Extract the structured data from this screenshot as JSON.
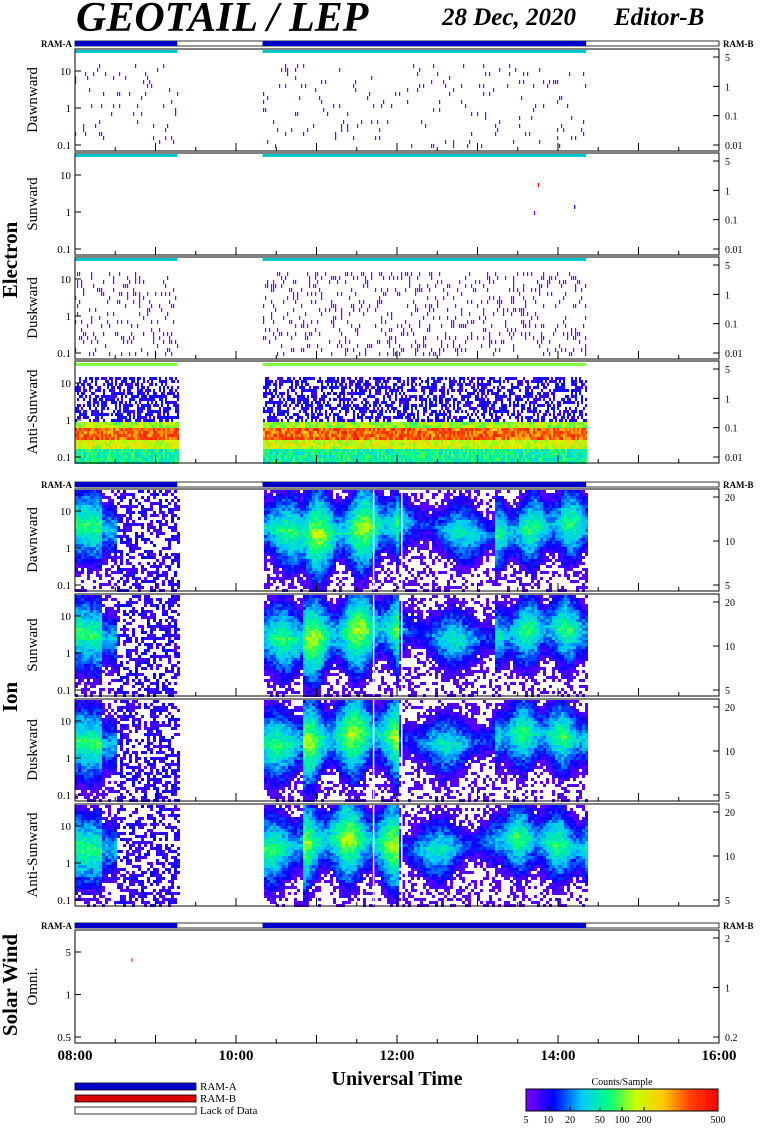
{
  "header": {
    "title": "GEOTAIL / LEP",
    "date": "28 Dec, 2020",
    "editor": "Editor-B"
  },
  "chart_data": {
    "type": "heatmap",
    "xlabel": "Universal Time",
    "x_ticks": [
      "08:00",
      "10:00",
      "12:00",
      "14:00",
      "16:00"
    ],
    "xlim_hours": [
      8,
      16
    ],
    "ram_label_left": "RAM-A",
    "ram_label_right": "RAM-B",
    "data_intervals_hours": [
      [
        8.0,
        9.27
      ],
      [
        10.33,
        14.35
      ]
    ],
    "groups": [
      {
        "name": "Electron",
        "panels": [
          {
            "label": "Dawnward",
            "kind": "e_sparse",
            "left_ticks": [
              "10",
              "1",
              "0.1"
            ],
            "right_ticks": [
              "5",
              "1",
              "0.1",
              "0.01"
            ]
          },
          {
            "label": "Sunward",
            "kind": "e_empty",
            "left_ticks": [
              "10",
              "1",
              "0.1"
            ],
            "right_ticks": [
              "5",
              "1",
              "0.1",
              "0.01"
            ]
          },
          {
            "label": "Duskward",
            "kind": "e_dense",
            "left_ticks": [
              "10",
              "1",
              "0.1"
            ],
            "right_ticks": [
              "5",
              "1",
              "0.1",
              "0.01"
            ]
          },
          {
            "label": "Anti-Sunward",
            "kind": "e_band",
            "left_ticks": [
              "10",
              "1",
              "0.1"
            ],
            "right_ticks": [
              "5",
              "1",
              "0.1",
              "0.01"
            ]
          }
        ]
      },
      {
        "name": "Ion",
        "panels": [
          {
            "label": "Dawnward",
            "kind": "ion",
            "left_ticks": [
              "10",
              "1",
              "0.1"
            ],
            "right_ticks": [
              "20",
              "10",
              "5"
            ]
          },
          {
            "label": "Sunward",
            "kind": "ion",
            "left_ticks": [
              "10",
              "1",
              "0.1"
            ],
            "right_ticks": [
              "20",
              "10",
              "5"
            ]
          },
          {
            "label": "Duskward",
            "kind": "ion",
            "left_ticks": [
              "10",
              "1",
              "0.1"
            ],
            "right_ticks": [
              "20",
              "10",
              "5"
            ]
          },
          {
            "label": "Anti-Sunward",
            "kind": "ion",
            "left_ticks": [
              "10",
              "1",
              "0.1"
            ],
            "right_ticks": [
              "20",
              "10",
              "5"
            ]
          }
        ]
      },
      {
        "name": "Solar Wind",
        "panels": [
          {
            "label": "Omni.",
            "kind": "sw",
            "left_ticks": [
              "5",
              "1",
              "0.5"
            ],
            "right_ticks": [
              "2",
              "1",
              "0.2"
            ]
          }
        ]
      }
    ],
    "legend": [
      {
        "label": "RAM-A",
        "color": "#0000cc"
      },
      {
        "label": "RAM-B",
        "color": "#dd0000"
      },
      {
        "label": "Lack of Data",
        "color": "#ffffff"
      }
    ],
    "colorbar": {
      "title": "Counts/Sample",
      "ticks": [
        "5",
        "10",
        "20",
        "50",
        "100",
        "200",
        "500"
      ],
      "colors": [
        "#8000ff",
        "#0000ff",
        "#00c8ff",
        "#00ff80",
        "#c8ff00",
        "#ffc800",
        "#ff4000",
        "#ff0000"
      ]
    }
  }
}
